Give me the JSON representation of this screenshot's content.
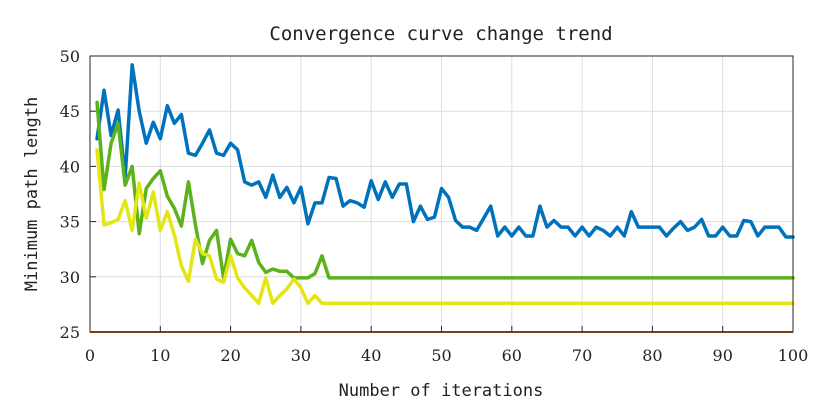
{
  "chart_data": {
    "type": "line",
    "title": "Convergence curve change trend",
    "xlabel": "Number of iterations",
    "ylabel": "Minimum path length",
    "xlim": [
      0,
      100
    ],
    "ylim": [
      25,
      50
    ],
    "xticks": [
      0,
      10,
      20,
      30,
      40,
      50,
      60,
      70,
      80,
      90,
      100
    ],
    "yticks": [
      25,
      30,
      35,
      40,
      45,
      50
    ],
    "grid": true,
    "legend": "none",
    "colors": [
      "#0072BD",
      "#5BB21B",
      "#E3E614"
    ],
    "series": [
      {
        "color": "#0072BD",
        "x": [
          1,
          2,
          3,
          4,
          5,
          6,
          7,
          8,
          9,
          10,
          11,
          12,
          13,
          14,
          15,
          16,
          17,
          18,
          19,
          20,
          21,
          22,
          23,
          24,
          25,
          26,
          27,
          28,
          29,
          30,
          31,
          32,
          33,
          34,
          35,
          36,
          37,
          38,
          39,
          40,
          41,
          42,
          43,
          44,
          45,
          46,
          47,
          48,
          49,
          50,
          51,
          52,
          53,
          54,
          55,
          56,
          57,
          58,
          59,
          60,
          61,
          62,
          63,
          64,
          65,
          66,
          67,
          68,
          69,
          70,
          71,
          72,
          73,
          74,
          75,
          76,
          77,
          78,
          79,
          80,
          81,
          82,
          83,
          84,
          85,
          86,
          87,
          88,
          89,
          90,
          91,
          92,
          93,
          94,
          95,
          96,
          97,
          98,
          99,
          100
        ],
        "y": [
          42.5,
          46.9,
          42.8,
          45.1,
          39.0,
          49.2,
          45.0,
          42.1,
          44.0,
          42.5,
          45.5,
          43.9,
          44.7,
          41.2,
          41.0,
          42.1,
          43.3,
          41.2,
          41.0,
          42.1,
          41.5,
          38.6,
          38.3,
          38.6,
          37.2,
          39.2,
          37.2,
          38.1,
          36.7,
          38.1,
          34.8,
          36.7,
          36.7,
          39.0,
          38.9,
          36.4,
          36.9,
          36.7,
          36.3,
          38.7,
          37.0,
          38.6,
          37.2,
          38.4,
          38.4,
          35.0,
          36.4,
          35.2,
          35.4,
          38.0,
          37.2,
          35.1,
          34.5,
          34.5,
          34.2,
          35.3,
          36.4,
          33.7,
          34.5,
          33.7,
          34.5,
          33.7,
          33.7,
          36.4,
          34.5,
          35.1,
          34.5,
          34.5,
          33.7,
          34.5,
          33.7,
          34.5,
          34.2,
          33.7,
          34.5,
          33.7,
          35.9,
          34.5,
          34.5,
          34.5,
          34.5,
          33.7,
          34.4,
          35.0,
          34.2,
          34.5,
          35.2,
          33.7,
          33.7,
          34.5,
          33.7,
          33.7,
          35.1,
          35.0,
          33.7,
          34.5,
          34.5,
          34.5,
          33.6,
          33.6
        ]
      },
      {
        "color": "#5BB21B",
        "x": [
          1,
          2,
          3,
          4,
          5,
          6,
          7,
          8,
          9,
          10,
          11,
          12,
          13,
          14,
          15,
          16,
          17,
          18,
          19,
          20,
          21,
          22,
          23,
          24,
          25,
          26,
          27,
          28,
          29,
          30,
          31,
          32,
          33,
          34,
          35,
          36,
          37,
          38,
          39,
          40,
          41,
          42,
          43,
          44,
          45,
          46,
          47,
          48,
          49,
          50,
          51,
          52,
          53,
          54,
          55,
          56,
          57,
          58,
          59,
          60,
          61,
          62,
          63,
          64,
          65,
          66,
          67,
          68,
          69,
          70,
          71,
          72,
          73,
          74,
          75,
          76,
          77,
          78,
          79,
          80,
          81,
          82,
          83,
          84,
          85,
          86,
          87,
          88,
          89,
          90,
          91,
          92,
          93,
          94,
          95,
          96,
          97,
          98,
          99,
          100
        ],
        "y": [
          45.8,
          37.9,
          42.1,
          43.9,
          38.3,
          40.0,
          33.9,
          38.0,
          38.9,
          39.6,
          37.3,
          36.2,
          34.6,
          38.6,
          34.7,
          31.2,
          33.3,
          34.2,
          29.9,
          33.4,
          32.1,
          31.9,
          33.3,
          31.3,
          30.4,
          30.7,
          30.5,
          30.5,
          29.9,
          29.9,
          29.9,
          30.3,
          31.9,
          29.9,
          29.9,
          29.9,
          29.9,
          29.9,
          29.9,
          29.9,
          29.9,
          29.9,
          29.9,
          29.9,
          29.9,
          29.9,
          29.9,
          29.9,
          29.9,
          29.9,
          29.9,
          29.9,
          29.9,
          29.9,
          29.9,
          29.9,
          29.9,
          29.9,
          29.9,
          29.9,
          29.9,
          29.9,
          29.9,
          29.9,
          29.9,
          29.9,
          29.9,
          29.9,
          29.9,
          29.9,
          29.9,
          29.9,
          29.9,
          29.9,
          29.9,
          29.9,
          29.9,
          29.9,
          29.9,
          29.9,
          29.9,
          29.9,
          29.9,
          29.9,
          29.9,
          29.9,
          29.9,
          29.9,
          29.9,
          29.9,
          29.9,
          29.9,
          29.9,
          29.9,
          29.9,
          29.9,
          29.9,
          29.9,
          29.9,
          29.9
        ]
      },
      {
        "color": "#E3E614",
        "x": [
          1,
          2,
          3,
          4,
          5,
          6,
          7,
          8,
          9,
          10,
          11,
          12,
          13,
          14,
          15,
          16,
          17,
          18,
          19,
          20,
          21,
          22,
          23,
          24,
          25,
          26,
          27,
          28,
          29,
          30,
          31,
          32,
          33,
          34,
          35,
          36,
          37,
          38,
          39,
          40,
          41,
          42,
          43,
          44,
          45,
          46,
          47,
          48,
          49,
          50,
          51,
          52,
          53,
          54,
          55,
          56,
          57,
          58,
          59,
          60,
          61,
          62,
          63,
          64,
          65,
          66,
          67,
          68,
          69,
          70,
          71,
          72,
          73,
          74,
          75,
          76,
          77,
          78,
          79,
          80,
          81,
          82,
          83,
          84,
          85,
          86,
          87,
          88,
          89,
          90,
          91,
          92,
          93,
          94,
          95,
          96,
          97,
          98,
          99,
          100
        ],
        "y": [
          41.5,
          34.7,
          34.9,
          35.2,
          36.9,
          34.2,
          38.5,
          35.3,
          37.7,
          34.2,
          35.9,
          33.8,
          31.0,
          29.6,
          33.4,
          32.1,
          31.9,
          29.8,
          29.5,
          31.9,
          29.9,
          29.0,
          28.3,
          27.6,
          29.9,
          27.6,
          28.3,
          28.9,
          29.8,
          29.0,
          27.6,
          28.3,
          27.6,
          27.6,
          27.6,
          27.6,
          27.6,
          27.6,
          27.6,
          27.6,
          27.6,
          27.6,
          27.6,
          27.6,
          27.6,
          27.6,
          27.6,
          27.6,
          27.6,
          27.6,
          27.6,
          27.6,
          27.6,
          27.6,
          27.6,
          27.6,
          27.6,
          27.6,
          27.6,
          27.6,
          27.6,
          27.6,
          27.6,
          27.6,
          27.6,
          27.6,
          27.6,
          27.6,
          27.6,
          27.6,
          27.6,
          27.6,
          27.6,
          27.6,
          27.6,
          27.6,
          27.6,
          27.6,
          27.6,
          27.6,
          27.6,
          27.6,
          27.6,
          27.6,
          27.6,
          27.6,
          27.6,
          27.6,
          27.6,
          27.6,
          27.6,
          27.6,
          27.6,
          27.6,
          27.6,
          27.6,
          27.6,
          27.6,
          27.6,
          27.6
        ]
      }
    ],
    "baseline": {
      "y": 25,
      "color": "#D95319"
    }
  }
}
